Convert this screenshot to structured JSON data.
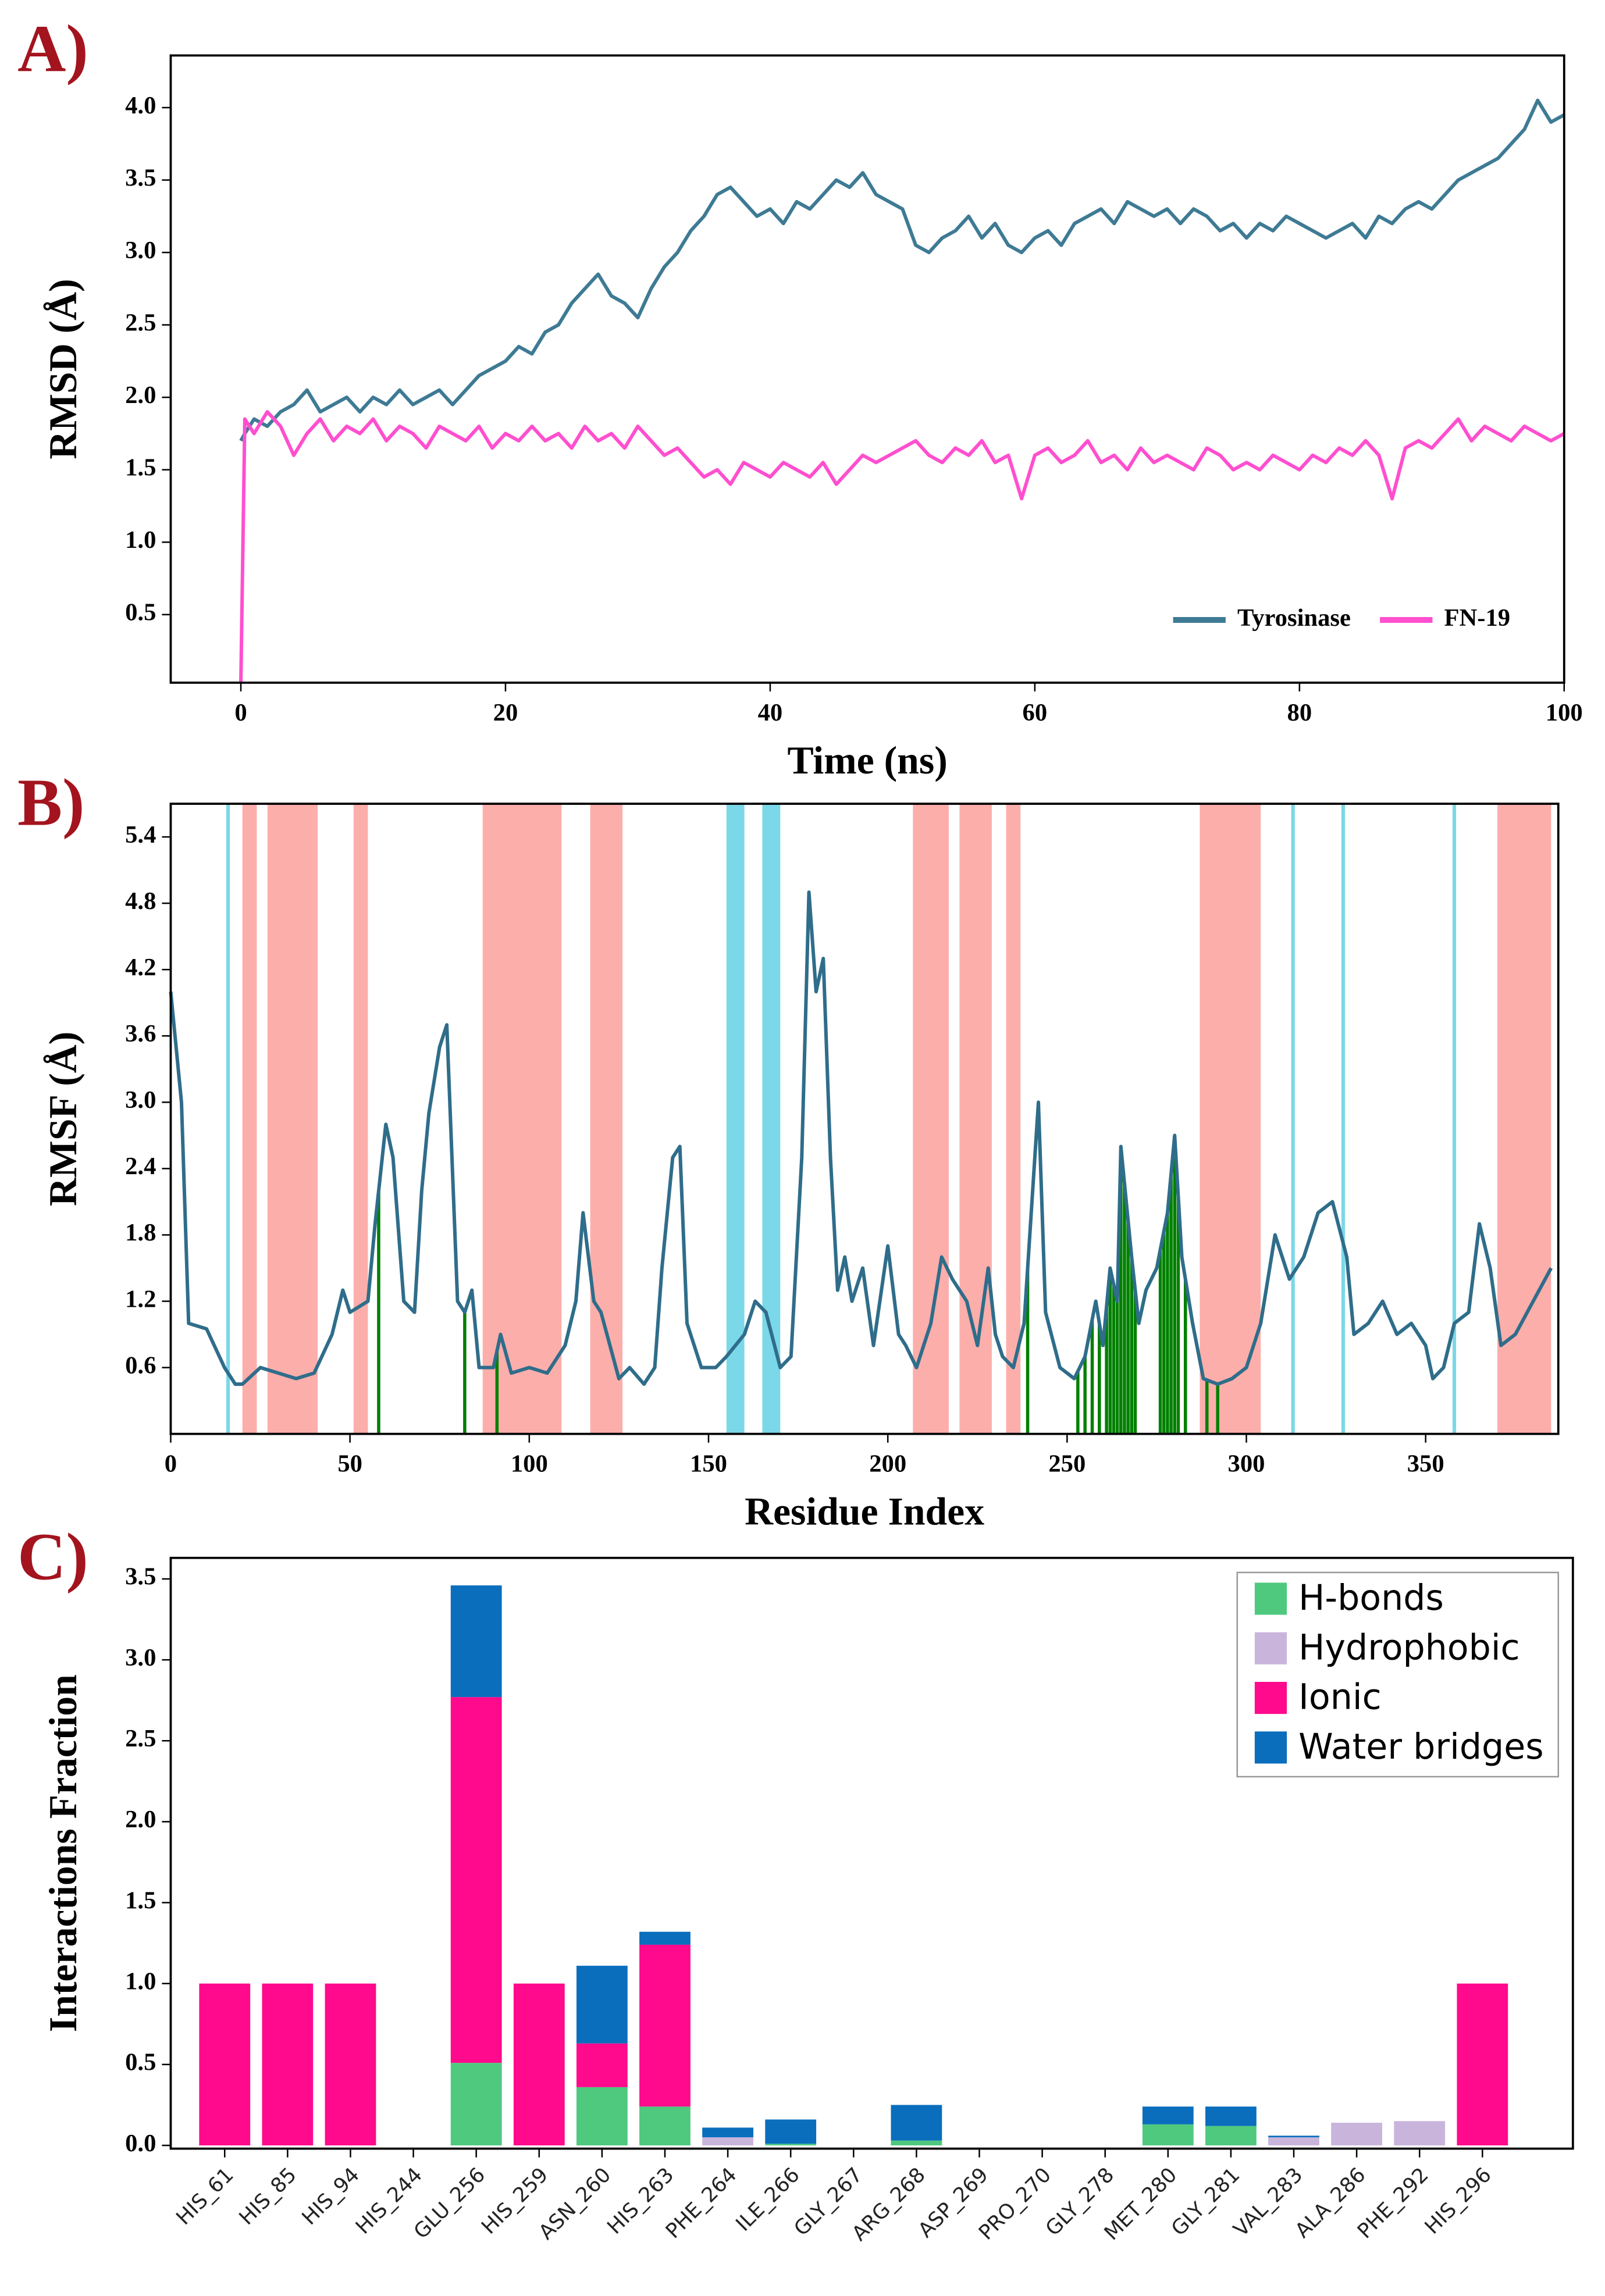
{
  "chart_data": [
    {
      "type": "line",
      "panel_label": "A)",
      "xlabel": "Time (ns)",
      "ylabel": "RMSD (Å)",
      "x": [
        0,
        0.3,
        1,
        2,
        3,
        4,
        5,
        6,
        7,
        8,
        9,
        10,
        11,
        12,
        13,
        14,
        15,
        16,
        17,
        18,
        19,
        20,
        21,
        22,
        23,
        24,
        25,
        26,
        27,
        28,
        29,
        30,
        31,
        32,
        33,
        34,
        35,
        36,
        37,
        38,
        39,
        40,
        41,
        42,
        43,
        44,
        45,
        46,
        47,
        48,
        49,
        50,
        51,
        52,
        53,
        54,
        55,
        56,
        57,
        58,
        59,
        60,
        61,
        62,
        63,
        64,
        65,
        66,
        67,
        68,
        69,
        70,
        71,
        72,
        73,
        74,
        75,
        76,
        77,
        78,
        79,
        80,
        81,
        82,
        83,
        84,
        85,
        86,
        87,
        88,
        89,
        90,
        91,
        92,
        93,
        94,
        95,
        96,
        97,
        98,
        99,
        100
      ],
      "series": [
        {
          "name": "Tyrosinase",
          "color": "#3e7a94",
          "values": [
            1.7,
            1.75,
            1.85,
            1.8,
            1.9,
            1.95,
            2.05,
            1.9,
            1.95,
            2.0,
            1.9,
            2.0,
            1.95,
            2.05,
            1.95,
            2.0,
            2.05,
            1.95,
            2.05,
            2.15,
            2.2,
            2.25,
            2.35,
            2.3,
            2.45,
            2.5,
            2.65,
            2.75,
            2.85,
            2.7,
            2.65,
            2.55,
            2.75,
            2.9,
            3.0,
            3.15,
            3.25,
            3.4,
            3.45,
            3.35,
            3.25,
            3.3,
            3.2,
            3.35,
            3.3,
            3.4,
            3.5,
            3.45,
            3.55,
            3.4,
            3.35,
            3.3,
            3.05,
            3.0,
            3.1,
            3.15,
            3.25,
            3.1,
            3.2,
            3.05,
            3.0,
            3.1,
            3.15,
            3.05,
            3.2,
            3.25,
            3.3,
            3.2,
            3.35,
            3.3,
            3.25,
            3.3,
            3.2,
            3.3,
            3.25,
            3.15,
            3.2,
            3.1,
            3.2,
            3.15,
            3.25,
            3.2,
            3.15,
            3.1,
            3.15,
            3.2,
            3.1,
            3.25,
            3.2,
            3.3,
            3.35,
            3.3,
            3.4,
            3.5,
            3.55,
            3.6,
            3.65,
            3.75,
            3.85,
            4.05,
            3.9,
            3.95
          ]
        },
        {
          "name": "FN-19",
          "color": "#ff4fcf",
          "values": [
            0.03,
            1.85,
            1.75,
            1.9,
            1.8,
            1.6,
            1.75,
            1.85,
            1.7,
            1.8,
            1.75,
            1.85,
            1.7,
            1.8,
            1.75,
            1.65,
            1.8,
            1.75,
            1.7,
            1.8,
            1.65,
            1.75,
            1.7,
            1.8,
            1.7,
            1.75,
            1.65,
            1.8,
            1.7,
            1.75,
            1.65,
            1.8,
            1.7,
            1.6,
            1.65,
            1.55,
            1.45,
            1.5,
            1.4,
            1.55,
            1.5,
            1.45,
            1.55,
            1.5,
            1.45,
            1.55,
            1.4,
            1.5,
            1.6,
            1.55,
            1.6,
            1.65,
            1.7,
            1.6,
            1.55,
            1.65,
            1.6,
            1.7,
            1.55,
            1.6,
            1.3,
            1.6,
            1.65,
            1.55,
            1.6,
            1.7,
            1.55,
            1.6,
            1.5,
            1.65,
            1.55,
            1.6,
            1.55,
            1.5,
            1.65,
            1.6,
            1.5,
            1.55,
            1.5,
            1.6,
            1.55,
            1.5,
            1.6,
            1.55,
            1.65,
            1.6,
            1.7,
            1.6,
            1.3,
            1.65,
            1.7,
            1.65,
            1.75,
            1.85,
            1.7,
            1.8,
            1.75,
            1.7,
            1.8,
            1.75,
            1.7,
            1.75
          ]
        }
      ],
      "xlim": [
        -5.3,
        100
      ],
      "xticks": [
        0,
        20,
        40,
        60,
        80,
        100
      ],
      "ylim": [
        0.03,
        4.36
      ],
      "yticks": [
        0.5,
        {
          "value": 1,
          "label": "1.0"
        },
        1.5,
        {
          "value": 2,
          "label": "2.0"
        },
        2.5,
        {
          "value": 3,
          "label": "3.0"
        },
        3.5,
        {
          "value": 4,
          "label": "4.0"
        }
      ],
      "legend": "lower right"
    },
    {
      "type": "line",
      "panel_label": "B)",
      "xlabel": "Residue Index",
      "ylabel": "RMSF (Å)",
      "x": [
        0,
        3,
        5,
        10,
        15,
        18,
        20,
        25,
        30,
        35,
        40,
        45,
        48,
        50,
        55,
        57,
        60,
        62,
        65,
        68,
        70,
        72,
        75,
        77,
        80,
        82,
        84,
        86,
        90,
        92,
        95,
        100,
        105,
        110,
        113,
        115,
        118,
        120,
        125,
        128,
        132,
        135,
        137,
        140,
        142,
        144,
        148,
        152,
        155,
        160,
        163,
        166,
        170,
        173,
        176,
        178,
        180,
        182,
        184,
        186,
        188,
        190,
        193,
        196,
        200,
        203,
        205,
        208,
        212,
        215,
        218,
        222,
        225,
        228,
        230,
        232,
        235,
        238,
        242,
        244,
        248,
        252,
        255,
        258,
        260,
        262,
        264,
        265,
        268,
        270,
        272,
        275,
        278,
        280,
        282,
        285,
        288,
        292,
        296,
        300,
        304,
        308,
        312,
        316,
        320,
        324,
        328,
        330,
        334,
        338,
        342,
        346,
        350,
        352,
        355,
        358,
        362,
        365,
        368,
        371,
        375,
        380,
        385
      ],
      "series": [
        {
          "color": "#2f6d8a",
          "values": [
            4.0,
            3.0,
            1.0,
            0.95,
            0.6,
            0.45,
            0.45,
            0.6,
            0.55,
            0.5,
            0.55,
            0.9,
            1.3,
            1.1,
            1.2,
            1.9,
            2.8,
            2.5,
            1.2,
            1.1,
            2.2,
            2.9,
            3.5,
            3.7,
            1.2,
            1.1,
            1.3,
            0.6,
            0.6,
            0.9,
            0.55,
            0.6,
            0.55,
            0.8,
            1.2,
            2.0,
            1.2,
            1.1,
            0.5,
            0.6,
            0.45,
            0.6,
            1.5,
            2.5,
            2.6,
            1.0,
            0.6,
            0.6,
            0.7,
            0.9,
            1.2,
            1.1,
            0.6,
            0.7,
            2.5,
            4.9,
            4.0,
            4.3,
            2.5,
            1.3,
            1.6,
            1.2,
            1.5,
            0.8,
            1.7,
            0.9,
            0.8,
            0.6,
            1.0,
            1.6,
            1.4,
            1.2,
            0.8,
            1.5,
            0.9,
            0.7,
            0.6,
            1.0,
            3.0,
            1.1,
            0.6,
            0.5,
            0.7,
            1.2,
            0.8,
            1.5,
            1.2,
            2.6,
            1.6,
            1.0,
            1.3,
            1.5,
            2.0,
            2.7,
            1.6,
            1.0,
            0.5,
            0.45,
            0.5,
            0.6,
            1.0,
            1.8,
            1.4,
            1.6,
            2.0,
            2.1,
            1.6,
            0.9,
            1.0,
            1.2,
            0.9,
            1.0,
            0.8,
            0.5,
            0.6,
            1.0,
            1.1,
            1.9,
            1.5,
            0.8,
            0.9,
            1.2,
            1.5
          ]
        }
      ],
      "regions": [
        {
          "color": "#fcaeab",
          "ranges": [
            [
              20,
              24
            ],
            [
              27,
              41
            ],
            [
              51,
              55
            ],
            [
              87,
              109
            ],
            [
              117,
              126
            ],
            [
              207,
              217
            ],
            [
              220,
              229
            ],
            [
              233,
              237
            ],
            [
              287,
              304
            ],
            [
              370,
              385
            ]
          ]
        },
        {
          "color": "#7ad8e8",
          "ranges": [
            [
              15.5,
              16.5
            ],
            [
              155,
              160
            ],
            [
              165,
              170
            ],
            [
              312.5,
              313.5
            ],
            [
              326.5,
              327.5
            ],
            [
              357.5,
              358.5
            ]
          ]
        }
      ],
      "contacts": [
        58,
        82,
        91,
        239,
        253,
        255,
        257,
        259,
        261,
        262,
        263,
        264,
        265,
        266,
        267,
        268,
        269,
        276,
        277,
        278,
        279,
        280,
        281,
        283,
        289,
        292
      ],
      "contact_color": "#008000",
      "xlim": [
        0,
        387
      ],
      "xticks": [
        0,
        50,
        100,
        150,
        200,
        250,
        300,
        350
      ],
      "ylim": [
        0,
        5.7
      ],
      "yticks": [
        0.6,
        1.2,
        1.8,
        2.4,
        {
          "value": 3,
          "label": "3.0"
        },
        3.6,
        4.2,
        4.8,
        5.4
      ]
    },
    {
      "type": "bar",
      "stacked": true,
      "panel_label": "C)",
      "ylabel": "Interactions Fraction",
      "categories": [
        "HIS_61",
        "HIS_85",
        "HIS_94",
        "HIS_244",
        "GLU_256",
        "HIS_259",
        "ASN_260",
        "HIS_263",
        "PHE_264",
        "ILE_266",
        "GLY_267",
        "ARG_268",
        "ASP_269",
        "PRO_270",
        "GLY_278",
        "MET_280",
        "GLY_281",
        "VAL_283",
        "ALA_286",
        "PHE_292",
        "HIS_296"
      ],
      "series": [
        {
          "name": "H-bonds",
          "color": "#4ec97e",
          "values": [
            0,
            0,
            0,
            0,
            0.51,
            0,
            0.36,
            0.24,
            0,
            0.01,
            0,
            0.03,
            0,
            0,
            0,
            0.13,
            0.12,
            0,
            0,
            0,
            0
          ]
        },
        {
          "name": "Hydrophobic",
          "color": "#c9b5dc",
          "values": [
            0,
            0,
            0,
            0,
            0,
            0,
            0,
            0,
            0.05,
            0,
            0,
            0,
            0,
            0,
            0,
            0,
            0,
            0.05,
            0.14,
            0.15,
            0
          ]
        },
        {
          "name": "Ionic",
          "color": "#ff0a8c",
          "values": [
            1,
            1,
            1,
            0,
            2.26,
            1,
            0.27,
            1,
            0,
            0,
            0,
            0,
            0,
            0,
            0,
            0,
            0,
            0,
            0,
            0,
            1
          ]
        },
        {
          "name": "Water bridges",
          "color": "#0a6ebd",
          "values": [
            0,
            0,
            0,
            0,
            0.69,
            0,
            0.48,
            0.08,
            0.06,
            0.15,
            0,
            0.22,
            0,
            0,
            0,
            0.11,
            0.12,
            0.01,
            0,
            0,
            0
          ]
        }
      ],
      "ylim": [
        -0.02,
        3.63
      ],
      "yticks": [
        {
          "value": 0,
          "label": "0.0"
        },
        0.5,
        {
          "value": 1,
          "label": "1.0"
        },
        1.5,
        {
          "value": 2,
          "label": "2.0"
        },
        2.5,
        {
          "value": 3,
          "label": "3.0"
        },
        3.5
      ],
      "legend": "upper right"
    }
  ]
}
